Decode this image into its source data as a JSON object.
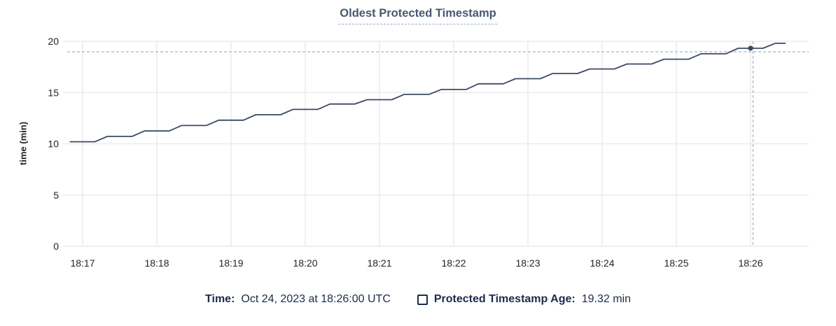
{
  "chart_data": {
    "type": "line",
    "title": "Oldest Protected Timestamp",
    "ylabel": "time (min)",
    "ylim": [
      0,
      20
    ],
    "y_ticks": [
      0,
      5,
      10,
      15,
      20
    ],
    "x_ticks": [
      "18:17",
      "18:18",
      "18:19",
      "18:20",
      "18:21",
      "18:22",
      "18:23",
      "18:24",
      "18:25",
      "18:26"
    ],
    "grid": true,
    "legend_position": "bottom",
    "series": [
      {
        "name": "Protected Timestamp Age",
        "unit": "min",
        "color": "#3c4a61",
        "points_x_unit": "seconds after 18:17:00 UTC",
        "points": [
          [
            -10,
            10.2
          ],
          [
            10,
            10.2
          ],
          [
            20,
            10.72
          ],
          [
            40,
            10.72
          ],
          [
            50,
            11.25
          ],
          [
            70,
            11.25
          ],
          [
            80,
            11.78
          ],
          [
            100,
            11.78
          ],
          [
            110,
            12.3
          ],
          [
            130,
            12.3
          ],
          [
            140,
            12.83
          ],
          [
            160,
            12.83
          ],
          [
            170,
            13.35
          ],
          [
            190,
            13.35
          ],
          [
            200,
            13.88
          ],
          [
            220,
            13.88
          ],
          [
            230,
            14.3
          ],
          [
            250,
            14.3
          ],
          [
            260,
            14.82
          ],
          [
            280,
            14.82
          ],
          [
            290,
            15.3
          ],
          [
            310,
            15.3
          ],
          [
            320,
            15.85
          ],
          [
            340,
            15.85
          ],
          [
            350,
            16.35
          ],
          [
            370,
            16.35
          ],
          [
            380,
            16.85
          ],
          [
            400,
            16.85
          ],
          [
            410,
            17.3
          ],
          [
            430,
            17.3
          ],
          [
            440,
            17.78
          ],
          [
            460,
            17.78
          ],
          [
            470,
            18.25
          ],
          [
            490,
            18.25
          ],
          [
            500,
            18.78
          ],
          [
            520,
            18.78
          ],
          [
            530,
            19.32
          ],
          [
            550,
            19.32
          ],
          [
            560,
            19.8
          ],
          [
            568,
            19.8
          ]
        ]
      }
    ],
    "hover": {
      "time": "18:26:00",
      "value": 19.32,
      "point_x_sec": 540,
      "crosshair_x_sec": 542,
      "crosshair_y_value": 18.97
    }
  },
  "legend": {
    "time_label": "Time:",
    "time_value": "Oct 24, 2023 at 18:26:00 UTC",
    "series_label": "Protected Timestamp Age:",
    "series_value": "19.32 min",
    "checkbox_checked": false
  },
  "colors": {
    "title": "#475872",
    "title-underline": "#9fa9bd",
    "legend-text": "#1c2b4a",
    "line": "#3c4a61",
    "grid": "#ececec",
    "grid-vertical": "#f0f0f0",
    "crosshair": "#aebcc9",
    "tick-text": "#242424"
  }
}
